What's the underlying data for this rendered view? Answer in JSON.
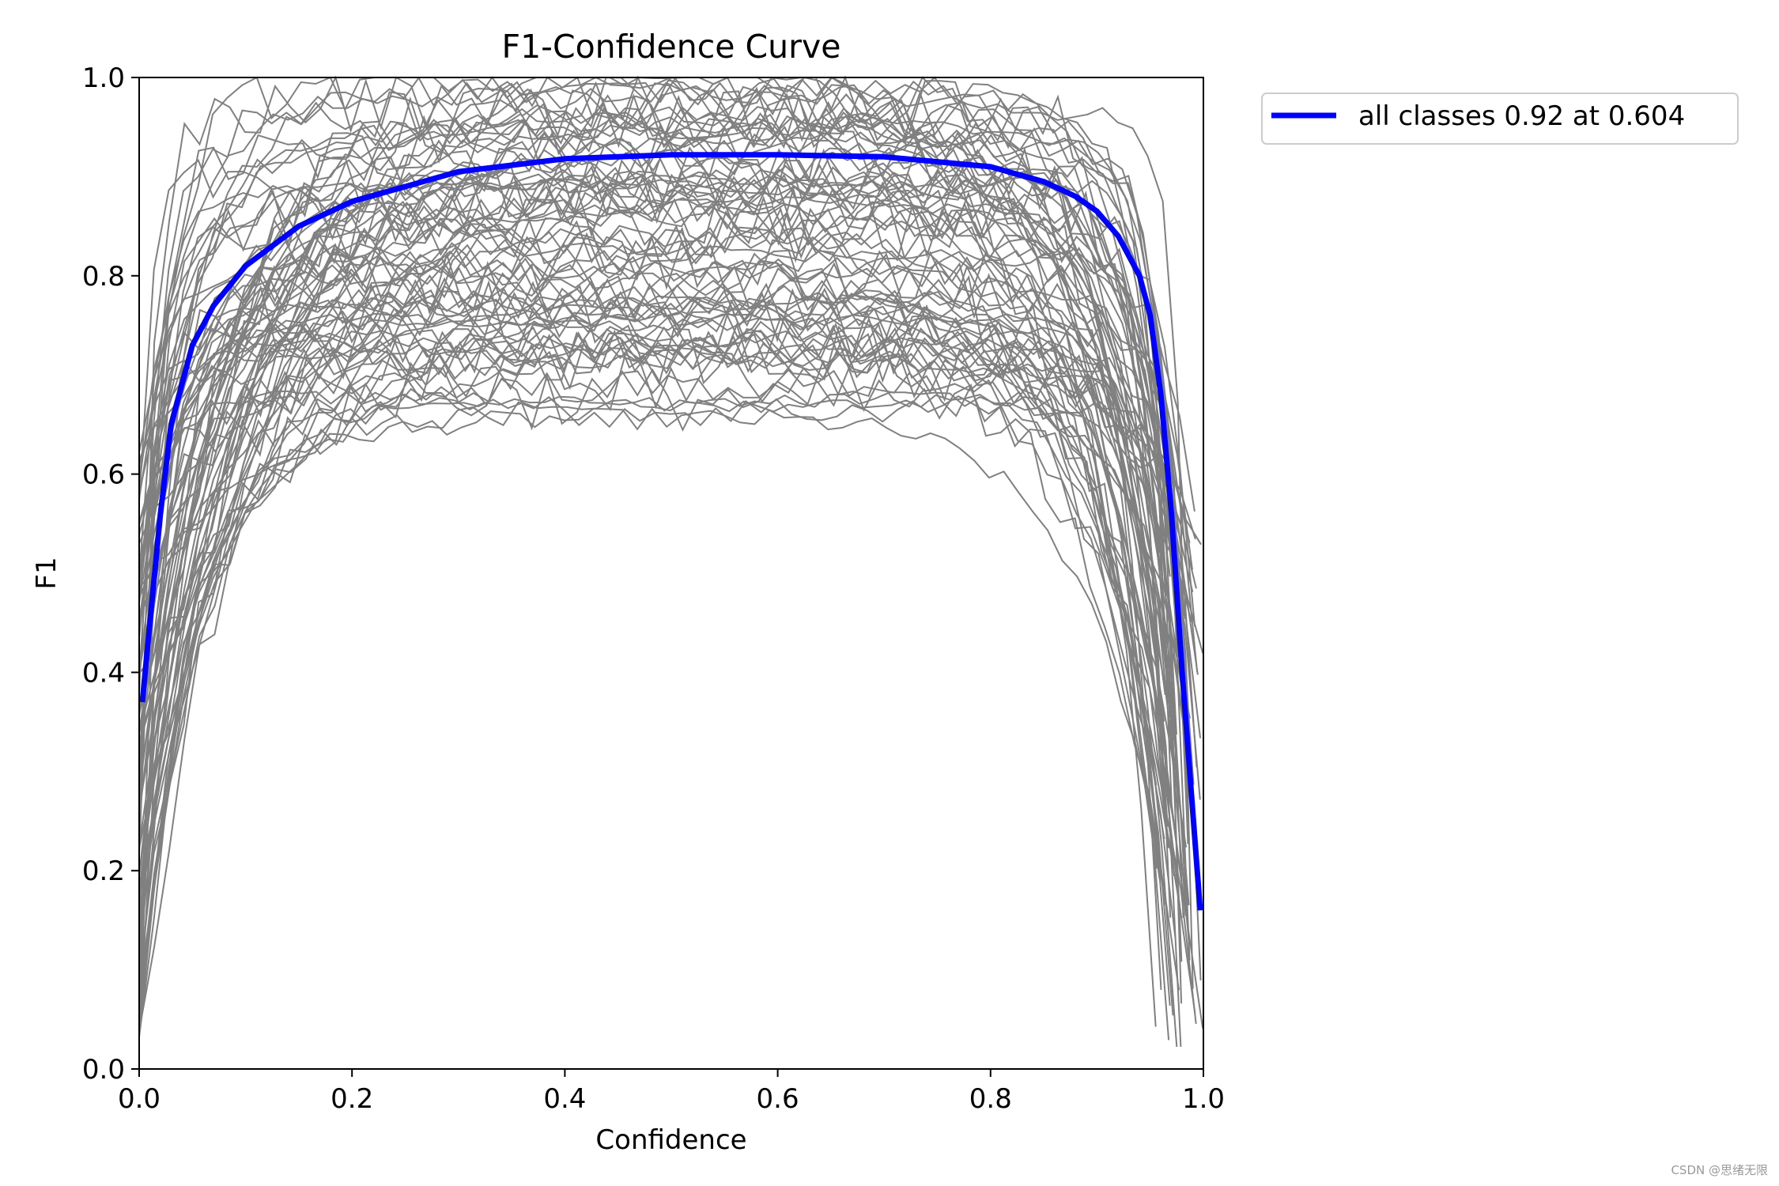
{
  "chart_data": {
    "type": "line",
    "title": "F1-Confidence Curve",
    "xlabel": "Confidence",
    "ylabel": "F1",
    "xlim": [
      0.0,
      1.0
    ],
    "ylim": [
      0.0,
      1.0
    ],
    "xticks": [
      "0.0",
      "0.2",
      "0.4",
      "0.6",
      "0.8",
      "1.0"
    ],
    "yticks": [
      "0.0",
      "0.2",
      "0.4",
      "0.6",
      "0.8",
      "1.0"
    ],
    "grid": false,
    "legend_position": "outside-top-right",
    "series": [
      {
        "name": "all classes 0.92 at 0.604",
        "color": "#0000ff",
        "x": [
          0.003,
          0.01,
          0.02,
          0.03,
          0.05,
          0.07,
          0.1,
          0.15,
          0.2,
          0.3,
          0.4,
          0.5,
          0.6,
          0.7,
          0.8,
          0.85,
          0.88,
          0.9,
          0.92,
          0.94,
          0.95,
          0.96,
          0.97,
          0.98,
          0.99,
          0.997
        ],
        "y": [
          0.37,
          0.45,
          0.56,
          0.65,
          0.73,
          0.77,
          0.81,
          0.85,
          0.875,
          0.905,
          0.918,
          0.922,
          0.922,
          0.92,
          0.91,
          0.895,
          0.88,
          0.865,
          0.84,
          0.8,
          0.76,
          0.68,
          0.56,
          0.4,
          0.26,
          0.16
        ]
      }
    ],
    "background_series": {
      "name": "per-class curves",
      "color": "#808080",
      "count": 80
    }
  },
  "watermark": "CSDN @思绪无限"
}
